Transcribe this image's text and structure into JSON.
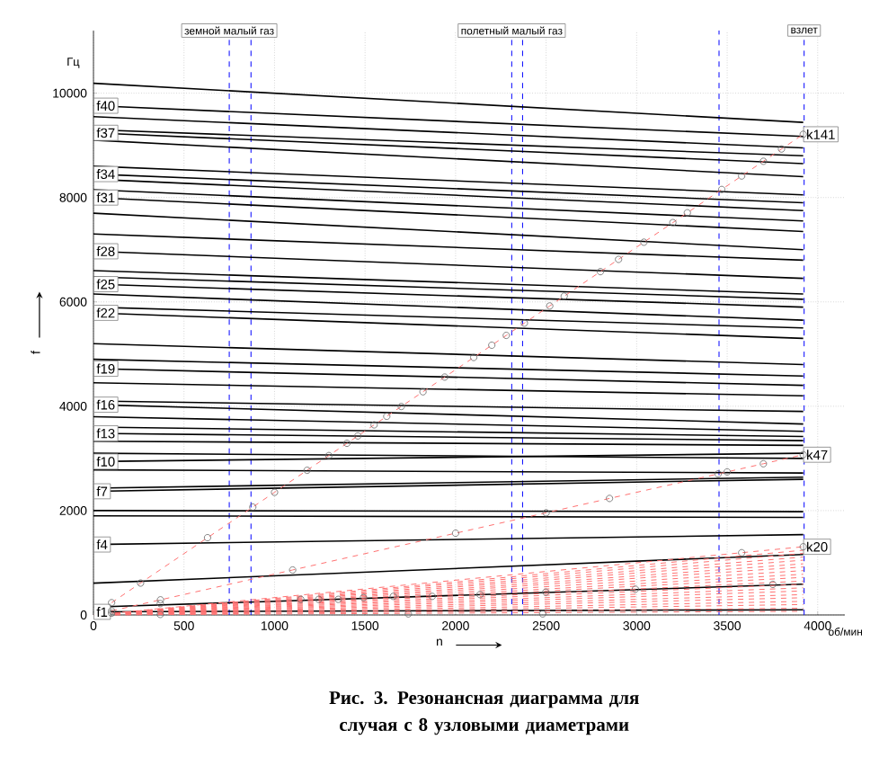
{
  "chart_data": {
    "type": "line",
    "xlabel": "n",
    "ylabel": "f",
    "annotations": [
      "Гц",
      "об/мин",
      "**Рис. 3. Резонансная диаграмма для случая с 8 узловыми диаметрами**"
    ],
    "xlim": [
      0,
      4150
    ],
    "ylim": [
      0,
      11200
    ],
    "xticks": [
      0,
      500,
      1000,
      1500,
      2000,
      2500,
      3000,
      3500,
      4000
    ],
    "yticks": [
      0,
      2000,
      4000,
      6000,
      8000,
      10000
    ],
    "grid": true,
    "ref_lines": [
      {
        "axis": "x",
        "value": 750,
        "label": "земной малый газ",
        "color": "#0000ff",
        "line_style": "dashed"
      },
      {
        "axis": "x",
        "value": 870,
        "color": "#0000ff",
        "line_style": "dashed"
      },
      {
        "axis": "x",
        "value": 2310,
        "label": "полетный малый газ",
        "color": "#0000ff",
        "line_style": "dashed"
      },
      {
        "axis": "x",
        "value": 2370,
        "color": "#0000ff",
        "line_style": "dashed"
      },
      {
        "axis": "x",
        "value": 3455,
        "color": "#0000ff",
        "line_style": "dashed"
      },
      {
        "axis": "x",
        "value": 3925,
        "label": "взлет",
        "color": "#0000ff",
        "line_style": "dashed"
      }
    ],
    "series": [
      {
        "name": "f1",
        "color": "#000000",
        "line_style": "solid",
        "x": [
          0,
          3920
        ],
        "values": [
          60,
          100
        ]
      },
      {
        "color": "#000000",
        "line_style": "solid",
        "x": [
          0,
          3920
        ],
        "values": [
          150,
          590
        ]
      },
      {
        "color": "#000000",
        "line_style": "solid",
        "x": [
          0,
          3920
        ],
        "values": [
          610,
          1160
        ]
      },
      {
        "name": "f4",
        "color": "#000000",
        "line_style": "solid",
        "x": [
          0,
          3920
        ],
        "values": [
          1350,
          1540
        ]
      },
      {
        "color": "#000000",
        "line_style": "solid",
        "x": [
          0,
          3920
        ],
        "values": [
          1900,
          1870
        ]
      },
      {
        "color": "#000000",
        "line_style": "solid",
        "x": [
          0,
          3920
        ],
        "values": [
          2000,
          1980
        ]
      },
      {
        "name": "f7",
        "color": "#000000",
        "line_style": "solid",
        "x": [
          0,
          3920
        ],
        "values": [
          2370,
          2600
        ]
      },
      {
        "color": "#000000",
        "line_style": "solid",
        "x": [
          0,
          3920
        ],
        "values": [
          2430,
          2640
        ]
      },
      {
        "color": "#000000",
        "line_style": "solid",
        "x": [
          0,
          3920
        ],
        "values": [
          2780,
          2720
        ]
      },
      {
        "name": "f10",
        "color": "#000000",
        "line_style": "solid",
        "x": [
          0,
          3920
        ],
        "values": [
          2940,
          3100
        ]
      },
      {
        "color": "#000000",
        "line_style": "solid",
        "x": [
          0,
          3920
        ],
        "values": [
          3100,
          3000
        ]
      },
      {
        "color": "#000000",
        "line_style": "solid",
        "x": [
          0,
          3920
        ],
        "values": [
          3330,
          3250
        ]
      },
      {
        "name": "f13",
        "color": "#000000",
        "line_style": "solid",
        "x": [
          0,
          3920
        ],
        "values": [
          3480,
          3340
        ]
      },
      {
        "color": "#000000",
        "line_style": "solid",
        "x": [
          0,
          3920
        ],
        "values": [
          3600,
          3420
        ]
      },
      {
        "color": "#000000",
        "line_style": "solid",
        "x": [
          0,
          3920
        ],
        "values": [
          3800,
          3520
        ]
      },
      {
        "name": "f16",
        "color": "#000000",
        "line_style": "solid",
        "x": [
          0,
          3920
        ],
        "values": [
          4030,
          3660
        ]
      },
      {
        "color": "#000000",
        "line_style": "solid",
        "x": [
          0,
          3920
        ],
        "values": [
          4100,
          3900
        ]
      },
      {
        "color": "#000000",
        "line_style": "solid",
        "x": [
          0,
          3920
        ],
        "values": [
          4450,
          4200
        ]
      },
      {
        "name": "f19",
        "color": "#000000",
        "line_style": "solid",
        "x": [
          0,
          3920
        ],
        "values": [
          4720,
          4400
        ]
      },
      {
        "color": "#000000",
        "line_style": "solid",
        "x": [
          0,
          3920
        ],
        "values": [
          4900,
          4580
        ]
      },
      {
        "color": "#000000",
        "line_style": "solid",
        "x": [
          0,
          3920
        ],
        "values": [
          5200,
          4800
        ]
      },
      {
        "name": "f22",
        "color": "#000000",
        "line_style": "solid",
        "x": [
          0,
          3920
        ],
        "values": [
          5790,
          5300
        ]
      },
      {
        "color": "#000000",
        "line_style": "solid",
        "x": [
          0,
          3920
        ],
        "values": [
          5900,
          5500
        ]
      },
      {
        "color": "#000000",
        "line_style": "solid",
        "x": [
          0,
          3920
        ],
        "values": [
          6150,
          5650
        ]
      },
      {
        "name": "f25",
        "color": "#000000",
        "line_style": "solid",
        "x": [
          0,
          3920
        ],
        "values": [
          6340,
          5900
        ]
      },
      {
        "color": "#000000",
        "line_style": "solid",
        "x": [
          0,
          3920
        ],
        "values": [
          6480,
          6050
        ]
      },
      {
        "color": "#000000",
        "line_style": "solid",
        "x": [
          0,
          3920
        ],
        "values": [
          6600,
          6150
        ]
      },
      {
        "name": "f28",
        "color": "#000000",
        "line_style": "solid",
        "x": [
          0,
          3920
        ],
        "values": [
          6970,
          6450
        ]
      },
      {
        "color": "#000000",
        "line_style": "solid",
        "x": [
          0,
          3920
        ],
        "values": [
          7300,
          6800
        ]
      },
      {
        "color": "#000000",
        "line_style": "solid",
        "x": [
          0,
          3920
        ],
        "values": [
          7700,
          7000
        ]
      },
      {
        "name": "f31",
        "color": "#000000",
        "line_style": "solid",
        "x": [
          0,
          3920
        ],
        "values": [
          8000,
          7350
        ]
      },
      {
        "color": "#000000",
        "line_style": "solid",
        "x": [
          0,
          3920
        ],
        "values": [
          8150,
          7550
        ]
      },
      {
        "color": "#000000",
        "line_style": "solid",
        "x": [
          0,
          3920
        ],
        "values": [
          8350,
          7750
        ]
      },
      {
        "name": "f34",
        "color": "#000000",
        "line_style": "solid",
        "x": [
          0,
          3920
        ],
        "values": [
          8450,
          7900
        ]
      },
      {
        "color": "#000000",
        "line_style": "solid",
        "x": [
          0,
          3920
        ],
        "values": [
          8600,
          8050
        ]
      },
      {
        "color": "#000000",
        "line_style": "solid",
        "x": [
          0,
          3920
        ],
        "values": [
          9100,
          8400
        ]
      },
      {
        "name": "f37",
        "color": "#000000",
        "line_style": "solid",
        "x": [
          0,
          3920
        ],
        "values": [
          9240,
          8650
        ]
      },
      {
        "color": "#000000",
        "line_style": "solid",
        "x": [
          0,
          3920
        ],
        "values": [
          9300,
          8800
        ]
      },
      {
        "color": "#000000",
        "line_style": "solid",
        "x": [
          0,
          3920
        ],
        "values": [
          9550,
          8950
        ]
      },
      {
        "name": "f40",
        "color": "#000000",
        "line_style": "solid",
        "x": [
          0,
          3920
        ],
        "values": [
          9760,
          9170
        ]
      },
      {
        "color": "#000000",
        "line_style": "solid",
        "x": [
          0,
          3920
        ],
        "values": [
          10190,
          9440
        ]
      },
      {
        "color": "#ff7070",
        "line_style": "dashed",
        "x": [
          0,
          3920
        ],
        "values": [
          0,
          70
        ]
      },
      {
        "color": "#ff7070",
        "line_style": "dashed",
        "x": [
          0,
          3920
        ],
        "values": [
          0,
          130
        ]
      },
      {
        "color": "#ff7070",
        "line_style": "dashed",
        "x": [
          0,
          3920
        ],
        "values": [
          0,
          200
        ]
      },
      {
        "color": "#ff7070",
        "line_style": "dashed",
        "x": [
          0,
          3920
        ],
        "values": [
          0,
          260
        ]
      },
      {
        "color": "#ff7070",
        "line_style": "dashed",
        "x": [
          0,
          3920
        ],
        "values": [
          0,
          330
        ]
      },
      {
        "color": "#ff7070",
        "line_style": "dashed",
        "x": [
          0,
          3920
        ],
        "values": [
          0,
          390
        ]
      },
      {
        "color": "#ff7070",
        "line_style": "dashed",
        "x": [
          0,
          3920
        ],
        "values": [
          0,
          460
        ]
      },
      {
        "color": "#ff7070",
        "line_style": "dashed",
        "x": [
          0,
          3920
        ],
        "values": [
          0,
          520
        ]
      },
      {
        "color": "#ff7070",
        "line_style": "dashed",
        "x": [
          0,
          3920
        ],
        "values": [
          0,
          590
        ]
      },
      {
        "color": "#ff7070",
        "line_style": "dashed",
        "x": [
          0,
          3920
        ],
        "values": [
          0,
          650
        ]
      },
      {
        "color": "#ff7070",
        "line_style": "dashed",
        "x": [
          0,
          3920
        ],
        "values": [
          0,
          720
        ]
      },
      {
        "color": "#ff7070",
        "line_style": "dashed",
        "x": [
          0,
          3920
        ],
        "values": [
          0,
          780
        ]
      },
      {
        "color": "#ff7070",
        "line_style": "dashed",
        "x": [
          0,
          3920
        ],
        "values": [
          0,
          850
        ]
      },
      {
        "color": "#ff7070",
        "line_style": "dashed",
        "x": [
          0,
          3920
        ],
        "values": [
          0,
          920
        ]
      },
      {
        "color": "#ff7070",
        "line_style": "dashed",
        "x": [
          0,
          3920
        ],
        "values": [
          0,
          980
        ]
      },
      {
        "color": "#ff7070",
        "line_style": "dashed",
        "x": [
          0,
          3920
        ],
        "values": [
          0,
          1050
        ]
      },
      {
        "color": "#ff7070",
        "line_style": "dashed",
        "x": [
          0,
          3920
        ],
        "values": [
          0,
          1110
        ]
      },
      {
        "color": "#ff7070",
        "line_style": "dashed",
        "x": [
          0,
          3920
        ],
        "values": [
          0,
          1180
        ]
      },
      {
        "color": "#ff7070",
        "line_style": "dashed",
        "x": [
          0,
          3920
        ],
        "values": [
          0,
          1240
        ]
      },
      {
        "name": "k20",
        "color": "#ff7070",
        "line_style": "dashed",
        "marker": "circle",
        "x": [
          100,
          3580,
          3920
        ],
        "values": [
          33,
          1193,
          1307
        ]
      },
      {
        "name": "k47",
        "color": "#ff7070",
        "line_style": "dashed",
        "marker": "circle",
        "x": [
          100,
          370,
          1100,
          2000,
          2500,
          2850,
          3450,
          3500,
          3700,
          3920
        ],
        "values": [
          78,
          290,
          862,
          1567,
          1958,
          2233,
          2703,
          2742,
          2898,
          3071
        ]
      },
      {
        "name": "k141",
        "color": "#ff7070",
        "line_style": "dashed",
        "marker": "circle",
        "x": [
          100,
          260,
          630,
          880,
          1000,
          1180,
          1300,
          1400,
          1460,
          1550,
          1620,
          1700,
          1820,
          1940,
          2100,
          2200,
          2280,
          2380,
          2520,
          2600,
          2800,
          2900,
          3040,
          3200,
          3280,
          3470,
          3580,
          3700,
          3800,
          3920
        ],
        "values": [
          235,
          611,
          1481,
          2068,
          2350,
          2773,
          3055,
          3290,
          3431,
          3643,
          3807,
          3995,
          4277,
          4559,
          4935,
          5170,
          5358,
          5593,
          5922,
          6110,
          6580,
          6815,
          7144,
          7520,
          7708,
          8155,
          8413,
          8695,
          8930,
          9212
        ]
      },
      {
        "type": "scatter",
        "color": "#707070",
        "marker": "circle",
        "x": [
          369,
          1145,
          1244,
          1352,
          1491,
          1656,
          1871,
          2135,
          2498,
          2993,
          3752,
          369,
          1739,
          2481
        ],
        "values": [
          218,
          299,
          299,
          299,
          333,
          356,
          356,
          390,
          437,
          494,
          586,
          10,
          20,
          20
        ]
      }
    ]
  }
}
